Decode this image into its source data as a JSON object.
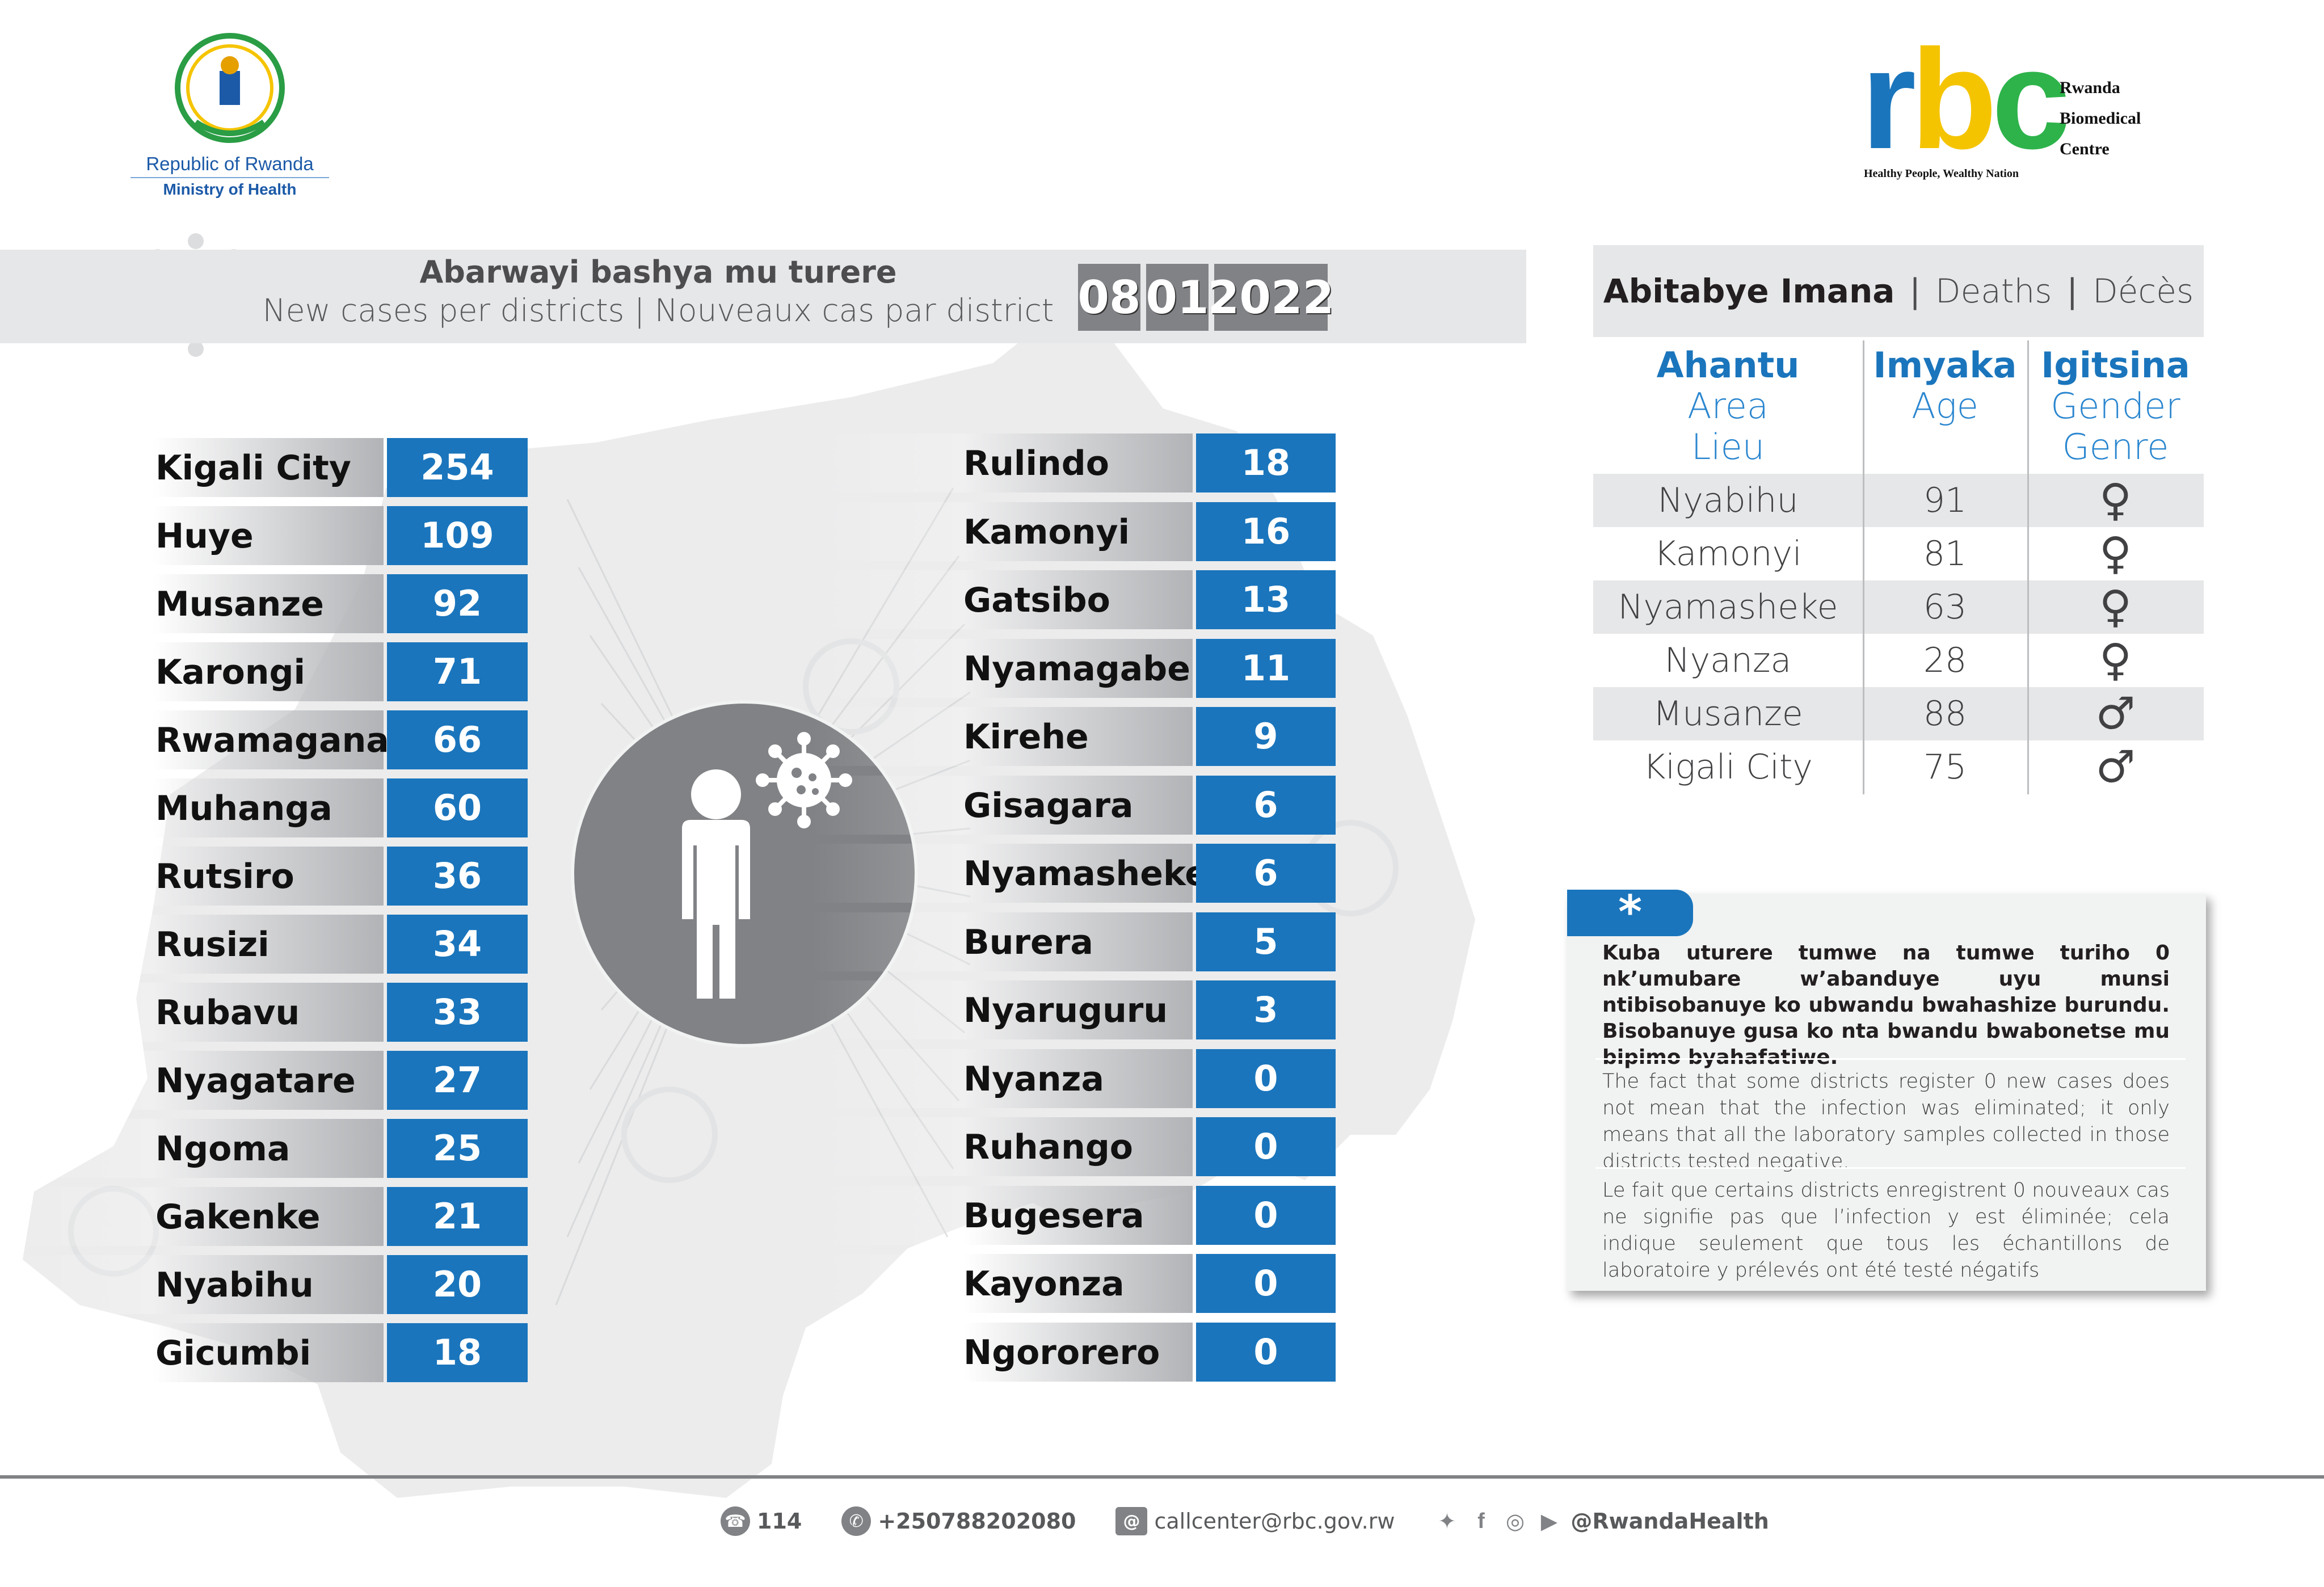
{
  "header": {
    "ministry_line1": "Republic of Rwanda",
    "ministry_line2": "Ministry of Health",
    "rbc_letters": [
      "r",
      "b",
      "c"
    ],
    "rbc_colors": [
      "#1a75bc",
      "#f5c400",
      "#2db34a"
    ],
    "rbc_name": [
      "Rwanda",
      "Biomedical",
      "Centre"
    ],
    "rbc_tagline": "Healthy People, Wealthy Nation"
  },
  "title": {
    "kinyarwanda": "Abarwayi bashya mu turere",
    "en_fr": "New cases per districts  |  Nouveaux cas par district",
    "date": {
      "day": "08",
      "month": "01",
      "year": "2022"
    }
  },
  "districts_left": [
    {
      "name": "Kigali City",
      "cases": "254"
    },
    {
      "name": "Huye",
      "cases": "109"
    },
    {
      "name": "Musanze",
      "cases": "92"
    },
    {
      "name": "Karongi",
      "cases": "71"
    },
    {
      "name": "Rwamagana",
      "cases": "66"
    },
    {
      "name": "Muhanga",
      "cases": "60"
    },
    {
      "name": "Rutsiro",
      "cases": "36"
    },
    {
      "name": "Rusizi",
      "cases": "34"
    },
    {
      "name": "Rubavu",
      "cases": "33"
    },
    {
      "name": "Nyagatare",
      "cases": "27"
    },
    {
      "name": "Ngoma",
      "cases": "25"
    },
    {
      "name": "Gakenke",
      "cases": "21"
    },
    {
      "name": "Nyabihu",
      "cases": "20"
    },
    {
      "name": "Gicumbi",
      "cases": "18"
    }
  ],
  "districts_right": [
    {
      "name": "Rulindo",
      "cases": "18"
    },
    {
      "name": "Kamonyi",
      "cases": "16"
    },
    {
      "name": "Gatsibo",
      "cases": "13"
    },
    {
      "name": "Nyamagabe",
      "cases": "11"
    },
    {
      "name": "Kirehe",
      "cases": "9"
    },
    {
      "name": "Gisagara",
      "cases": "6"
    },
    {
      "name": "Nyamasheke",
      "cases": "6"
    },
    {
      "name": "Burera",
      "cases": "5"
    },
    {
      "name": "Nyaruguru",
      "cases": "3"
    },
    {
      "name": "Nyanza",
      "cases": "0"
    },
    {
      "name": "Ruhango",
      "cases": "0"
    },
    {
      "name": "Bugesera",
      "cases": "0"
    },
    {
      "name": "Kayonza",
      "cases": "0"
    },
    {
      "name": "Ngororero",
      "cases": "0"
    }
  ],
  "deaths": {
    "header_kin": "Abitabye Imana",
    "header_en": "Deaths",
    "header_fr": "Décès",
    "sep": "|",
    "columns": {
      "area": {
        "kin": "Ahantu",
        "en": "Area",
        "fr": "Lieu"
      },
      "age": {
        "kin": "Imyaka",
        "en": "Age"
      },
      "gender": {
        "kin": "Igitsina",
        "en": "Gender",
        "fr": "Genre"
      }
    },
    "rows": [
      {
        "area": "Nyabihu",
        "age": "91",
        "gender": "♀"
      },
      {
        "area": "Kamonyi",
        "age": "81",
        "gender": "♀"
      },
      {
        "area": "Nyamasheke",
        "age": "63",
        "gender": "♀"
      },
      {
        "area": "Nyanza",
        "age": "28",
        "gender": "♀"
      },
      {
        "area": "Musanze",
        "age": "88",
        "gender": "♂"
      },
      {
        "area": "Kigali City",
        "age": "75",
        "gender": "♂"
      }
    ]
  },
  "note": {
    "star": "*",
    "kinyarwanda": "Kuba uturere tumwe na tumwe turiho 0 nk’umubare w’abanduye  uyu munsi ntibisobanuye ko ubwandu bwahashize burundu. Bisobanuye gusa ko nta bwandu bwabonetse mu bipimo byahafatiwe.",
    "english": "The fact that some districts register 0 new cases does not mean that the infection was eliminated; it only means that all the laboratory samples collected in those districts tested negative.",
    "french": "Le fait que certains districts enregistrent 0 nouveaux cas ne signifie pas que l’infection y est éliminée; cela indique seulement que tous les échantillons de laboratoire y prélevés ont été testé négatifs"
  },
  "footer": {
    "hotline": "114",
    "whatsapp": "+250788202080",
    "email": "callcenter@rbc.gov.rw",
    "social": "@RwandaHealth",
    "social_icons": [
      "twitter-icon",
      "facebook-icon",
      "instagram-icon",
      "youtube-icon"
    ]
  },
  "colors": {
    "value_blue": "#1a75bc",
    "band_gray": "#e6e7e8",
    "date_gray": "#808285"
  }
}
